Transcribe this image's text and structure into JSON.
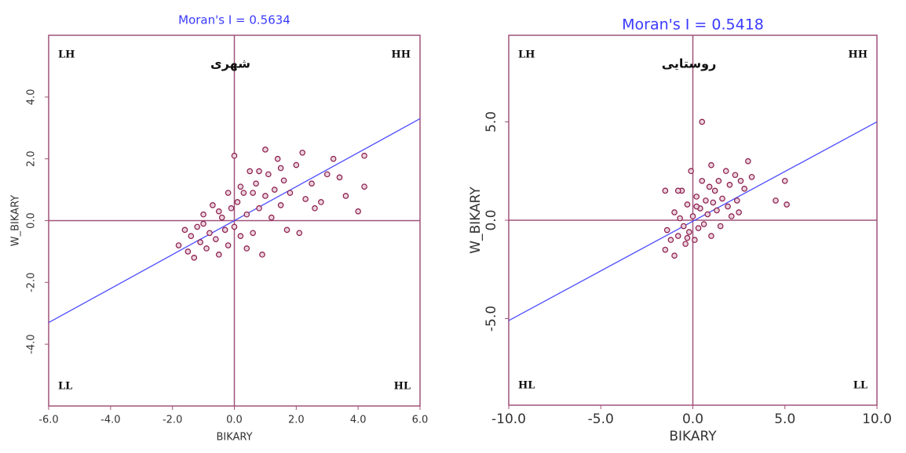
{
  "chart_data": [
    {
      "type": "scatter",
      "title": "Moran's I = 0.5634",
      "subtitle": "شهری",
      "x_label": "BIKARY",
      "y_label": "W_BIKARY",
      "quadrant_labels": [
        "LH",
        "HH",
        "LL",
        "HL"
      ],
      "xlim": [
        -6,
        6
      ],
      "ylim": [
        -6,
        6
      ],
      "xticks": [
        {
          "value": -6,
          "label": "-6.0"
        },
        {
          "value": -4,
          "label": "-4.0"
        },
        {
          "value": -2,
          "label": "-2.0"
        },
        {
          "value": 0,
          "label": "0.0"
        },
        {
          "value": 2,
          "label": "2.0"
        },
        {
          "value": 4,
          "label": "4.0"
        },
        {
          "value": 6,
          "label": "6.0"
        }
      ],
      "yticks": [
        {
          "value": -4,
          "label": "-4.0"
        },
        {
          "value": -2,
          "label": "-2.0"
        },
        {
          "value": 0,
          "label": "0.0"
        },
        {
          "value": 2,
          "label": "2.0"
        },
        {
          "value": 4,
          "label": "4.0"
        }
      ],
      "color": "#8b1a4a",
      "line_color": "#4d4dff",
      "x": [
        -1.8,
        -1.6,
        -1.5,
        -1.4,
        -1.3,
        -1.2,
        -1.1,
        -1.0,
        -0.9,
        -0.8,
        -0.7,
        -0.6,
        -0.5,
        -0.4,
        -0.3,
        -0.2,
        -0.1,
        0,
        0,
        0.1,
        0.2,
        0.3,
        0.4,
        0.5,
        0.6,
        0.7,
        0.8,
        0.9,
        1.0,
        1.0,
        1.1,
        1.2,
        1.3,
        1.4,
        1.5,
        1.6,
        1.7,
        1.8,
        2.0,
        2.1,
        2.2,
        2.3,
        2.5,
        2.6,
        2.8,
        3.0,
        3.2,
        3.4,
        3.6,
        4.0,
        4.2,
        4.2,
        -0.5,
        0.2,
        0.6,
        -1.0,
        0.4,
        1.5,
        -0.2,
        0.8
      ],
      "y": [
        -0.8,
        -0.3,
        -1.0,
        -0.5,
        -1.2,
        -0.2,
        -0.7,
        0.2,
        -0.9,
        -0.4,
        0.5,
        -0.6,
        -1.1,
        0.1,
        -0.3,
        -0.8,
        0.4,
        -0.2,
        2.1,
        0.6,
        -0.5,
        0.9,
        0.2,
        1.6,
        -0.4,
        1.2,
        0.4,
        -1.1,
        2.3,
        0.8,
        1.5,
        0.1,
        1.0,
        2.0,
        0.5,
        1.3,
        -0.3,
        0.9,
        1.8,
        -0.4,
        2.2,
        0.7,
        1.2,
        0.4,
        0.6,
        1.5,
        2.0,
        1.4,
        0.8,
        0.3,
        2.1,
        1.1,
        0.3,
        1.1,
        0.9,
        -0.1,
        -0.9,
        1.7,
        0.9,
        1.6
      ],
      "trend_line": {
        "x": [
          -6,
          6
        ],
        "y": [
          -3.3,
          3.3
        ]
      }
    },
    {
      "type": "scatter",
      "title": "Moran's I = 0.5418",
      "subtitle": "روستایی",
      "x_label": "BIKARY",
      "y_label": "W_BIKARY",
      "quadrant_labels": [
        "LH",
        "HH",
        "HL",
        "LL"
      ],
      "xlim": [
        -10,
        10
      ],
      "ylim": [
        -9.4,
        9.4
      ],
      "xticks": [
        {
          "value": -10,
          "label": "-10.0"
        },
        {
          "value": -5,
          "label": "-5.0"
        },
        {
          "value": 0,
          "label": "0.0"
        },
        {
          "value": 5,
          "label": "5.0"
        },
        {
          "value": 10,
          "label": "10.0"
        }
      ],
      "yticks": [
        {
          "value": -5,
          "label": "-5.0"
        },
        {
          "value": 0,
          "label": "0.0"
        },
        {
          "value": 5,
          "label": "5.0"
        }
      ],
      "color": "#8b1a4a",
      "line_color": "#4d4dff",
      "x": [
        -1.5,
        -1.4,
        -1.2,
        -1.0,
        -1.0,
        -0.8,
        -0.6,
        -0.5,
        -0.4,
        -0.3,
        -0.2,
        -0.1,
        0,
        0.1,
        0.2,
        0.3,
        0.4,
        0.5,
        0.6,
        0.7,
        0.8,
        1.0,
        1.0,
        1.2,
        1.3,
        1.4,
        1.5,
        1.6,
        1.8,
        1.9,
        2.0,
        2.1,
        2.3,
        2.4,
        2.5,
        2.6,
        2.8,
        3.0,
        3.2,
        4.5,
        5.0,
        5.1,
        0.5,
        -1.5,
        -0.8,
        0.9,
        -0.3,
        0.2,
        1.1,
        -0.7
      ],
      "y": [
        -1.5,
        -0.5,
        -1.0,
        0.4,
        -1.8,
        -0.8,
        1.5,
        -0.3,
        -1.2,
        0.8,
        -0.6,
        2.5,
        0.2,
        -1.0,
        1.2,
        -0.4,
        0.6,
        2.0,
        -0.2,
        1.0,
        0.3,
        2.8,
        -0.8,
        1.5,
        0.5,
        2.0,
        -0.3,
        1.1,
        2.5,
        0.7,
        1.8,
        0.2,
        2.3,
        1.0,
        0.4,
        2.0,
        1.6,
        3.0,
        2.2,
        1.0,
        2.0,
        0.8,
        5.0,
        1.5,
        1.5,
        1.7,
        -0.9,
        0.7,
        0.9,
        0.1
      ],
      "trend_line": {
        "x": [
          -10,
          10
        ],
        "y": [
          -5.1,
          5.0
        ]
      }
    }
  ]
}
